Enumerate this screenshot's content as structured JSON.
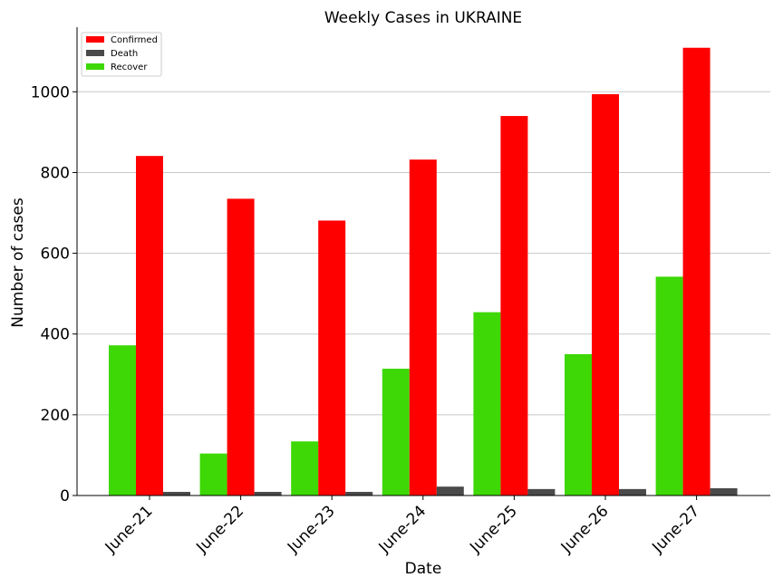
{
  "chart_data": {
    "type": "bar",
    "title": "Weekly Cases in UKRAINE",
    "xlabel": "Date",
    "ylabel": "Number of cases",
    "categories": [
      "June-21",
      "June-22",
      "June-23",
      "June-24",
      "June-25",
      "June-26",
      "June-27"
    ],
    "series": [
      {
        "name": "Recover",
        "color": "#3dd805",
        "values": [
          372,
          104,
          134,
          314,
          454,
          350,
          542
        ]
      },
      {
        "name": "Confirmed",
        "color": "#ff0000",
        "values": [
          841,
          735,
          681,
          832,
          940,
          994,
          1109
        ]
      },
      {
        "name": "Death",
        "color": "#4a4a4a",
        "values": [
          9,
          9,
          9,
          22,
          16,
          16,
          18
        ]
      }
    ],
    "legend_order": [
      "Confirmed",
      "Death",
      "Recover"
    ],
    "ylim": [
      0,
      1160
    ],
    "yticks": [
      0,
      200,
      400,
      600,
      800,
      1000
    ],
    "grid": "horizontal",
    "legend_position": "top-left"
  }
}
